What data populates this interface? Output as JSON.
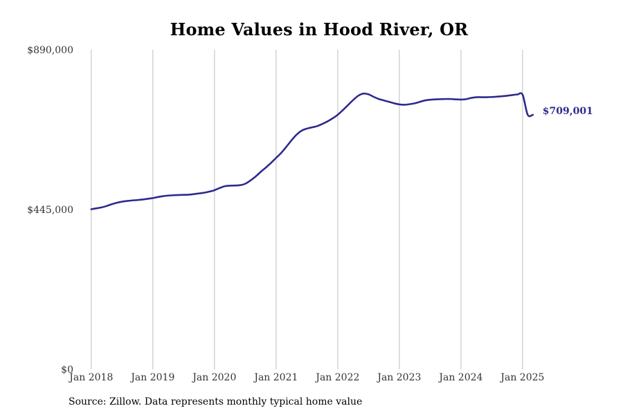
{
  "page": {
    "source_note": "Source: Zillow. Data represents monthly typical home value"
  },
  "chart_data": {
    "type": "line",
    "title": "Home Values in Hood River, OR",
    "xlabel": "",
    "ylabel": "",
    "x_ticks": [
      "Jan 2018",
      "Jan 2019",
      "Jan 2020",
      "Jan 2021",
      "Jan 2022",
      "Jan 2023",
      "Jan 2024",
      "Jan 2025"
    ],
    "y_ticks": [
      "$0",
      "$445,000",
      "$890,000"
    ],
    "y_tick_values": [
      0,
      445000,
      890000
    ],
    "ylim": [
      0,
      890000
    ],
    "xlim": [
      "2017-11",
      "2025-06"
    ],
    "grid": "vertical",
    "line_color": "#2e2a8c",
    "last_value_label": "$709,001",
    "series": [
      {
        "x": [
          "2018-01",
          "2018-02",
          "2018-03",
          "2018-04",
          "2018-05",
          "2018-06",
          "2018-07",
          "2018-08",
          "2018-09",
          "2018-10",
          "2018-11",
          "2018-12",
          "2019-01",
          "2019-02",
          "2019-03",
          "2019-04",
          "2019-05",
          "2019-06",
          "2019-07",
          "2019-08",
          "2019-09",
          "2019-10",
          "2019-11",
          "2019-12",
          "2020-01",
          "2020-02",
          "2020-03",
          "2020-04",
          "2020-05",
          "2020-06",
          "2020-07",
          "2020-08",
          "2020-09",
          "2020-10",
          "2020-11",
          "2020-12",
          "2021-01",
          "2021-02",
          "2021-03",
          "2021-04",
          "2021-05",
          "2021-06",
          "2021-07",
          "2021-08",
          "2021-09",
          "2021-10",
          "2021-11",
          "2021-12",
          "2022-01",
          "2022-02",
          "2022-03",
          "2022-04",
          "2022-05",
          "2022-06",
          "2022-07",
          "2022-08",
          "2022-09",
          "2022-10",
          "2022-11",
          "2022-12",
          "2023-01",
          "2023-02",
          "2023-03",
          "2023-04",
          "2023-05",
          "2023-06",
          "2023-07",
          "2023-08",
          "2023-09",
          "2023-10",
          "2023-11",
          "2023-12",
          "2024-01",
          "2024-02",
          "2024-03",
          "2024-04",
          "2024-05",
          "2024-06",
          "2024-07",
          "2024-08",
          "2024-09",
          "2024-10",
          "2024-11",
          "2024-12",
          "2025-01",
          "2025-02",
          "2025-03"
        ],
        "values": [
          446000,
          448500,
          451000,
          455000,
          460000,
          464000,
          467000,
          469000,
          470500,
          471500,
          473000,
          475000,
          477000,
          480000,
          482500,
          484000,
          485000,
          485500,
          486000,
          486500,
          488000,
          490000,
          492000,
          495000,
          499000,
          505000,
          510000,
          511500,
          512000,
          513000,
          517000,
          526000,
          537000,
          550000,
          562000,
          575000,
          589000,
          603000,
          620000,
          638000,
          654000,
          665000,
          670500,
          674000,
          677500,
          683500,
          690500,
          699000,
          709000,
          722000,
          736000,
          750000,
          762000,
          768000,
          766000,
          759000,
          753000,
          749000,
          745000,
          741000,
          738000,
          737000,
          738500,
          741000,
          745000,
          749000,
          751000,
          752000,
          752500,
          753000,
          753000,
          752000,
          751500,
          752500,
          756000,
          758000,
          758000,
          758000,
          758500,
          759500,
          760500,
          762000,
          764000,
          765500,
          765000,
          709001,
          709001
        ]
      }
    ]
  }
}
